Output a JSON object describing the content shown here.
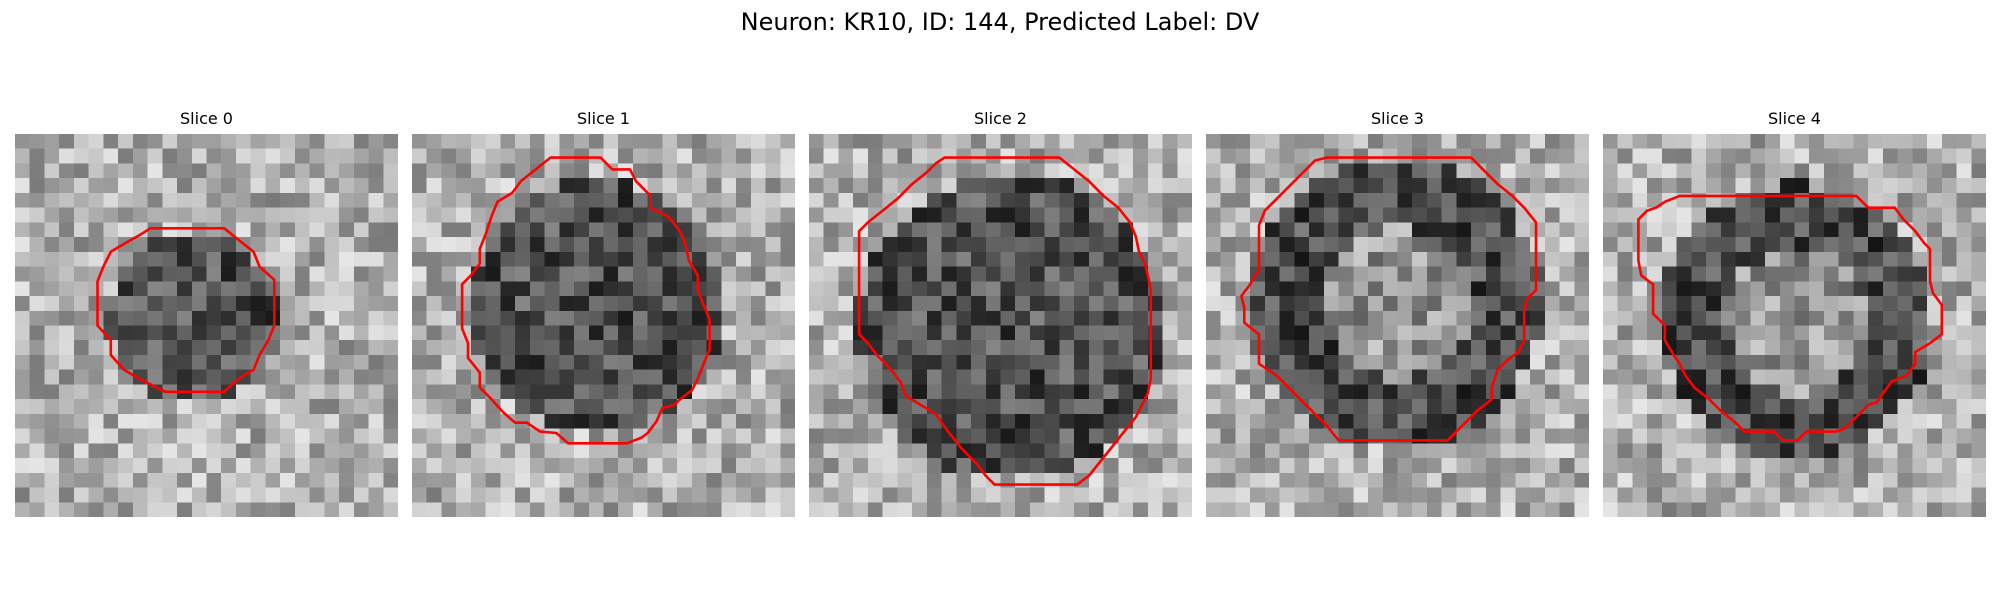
{
  "figure": {
    "title": "Neuron: KR10, ID: 144, Predicted Label: DV"
  },
  "panels": [
    {
      "title": "Slice 0",
      "contour": [
        [
          12.5,
          6.4
        ],
        [
          14.2,
          6.4
        ],
        [
          15.2,
          7.2
        ],
        [
          16.2,
          8.0
        ],
        [
          16.6,
          9.0
        ],
        [
          17.6,
          9.9
        ],
        [
          17.6,
          11.0
        ],
        [
          17.6,
          12.0
        ],
        [
          17.6,
          13.0
        ],
        [
          17.2,
          14.0
        ],
        [
          16.6,
          15.0
        ],
        [
          16.2,
          16.0
        ],
        [
          15.2,
          16.6
        ],
        [
          14.2,
          17.5
        ],
        [
          13.2,
          17.5
        ],
        [
          12.2,
          17.5
        ],
        [
          11.2,
          17.5
        ],
        [
          10.2,
          17.5
        ],
        [
          9.2,
          17.0
        ],
        [
          8.4,
          16.6
        ],
        [
          7.4,
          16.0
        ],
        [
          6.5,
          15.0
        ],
        [
          6.5,
          14.0
        ],
        [
          5.6,
          13.0
        ],
        [
          5.6,
          12.0
        ],
        [
          5.6,
          11.0
        ],
        [
          5.6,
          10.0
        ],
        [
          6.0,
          9.0
        ],
        [
          6.5,
          8.0
        ],
        [
          7.5,
          7.4
        ],
        [
          8.4,
          6.9
        ],
        [
          9.2,
          6.4
        ],
        [
          10.2,
          6.4
        ],
        [
          11.2,
          6.4
        ],
        [
          12.2,
          6.4
        ]
      ]
    },
    {
      "title": "Slice 1",
      "contour": [
        [
          9.8,
          1.6
        ],
        [
          10.8,
          1.6
        ],
        [
          11.8,
          1.6
        ],
        [
          12.8,
          1.6
        ],
        [
          13.6,
          2.4
        ],
        [
          14.8,
          2.4
        ],
        [
          15.2,
          3.2
        ],
        [
          16.2,
          4.2
        ],
        [
          16.2,
          5.0
        ],
        [
          17.4,
          5.6
        ],
        [
          18.2,
          6.6
        ],
        [
          18.6,
          7.6
        ],
        [
          18.8,
          8.6
        ],
        [
          19.4,
          9.6
        ],
        [
          19.4,
          10.6
        ],
        [
          19.8,
          11.6
        ],
        [
          20.2,
          12.6
        ],
        [
          20.2,
          13.6
        ],
        [
          20.2,
          14.6
        ],
        [
          19.8,
          15.6
        ],
        [
          19.4,
          16.6
        ],
        [
          19.0,
          17.4
        ],
        [
          18.2,
          18.0
        ],
        [
          17.8,
          18.4
        ],
        [
          17.0,
          18.6
        ],
        [
          16.6,
          19.5
        ],
        [
          16.0,
          20.3
        ],
        [
          15.6,
          20.6
        ],
        [
          14.6,
          21.0
        ],
        [
          13.6,
          21.0
        ],
        [
          12.6,
          21.0
        ],
        [
          11.6,
          21.0
        ],
        [
          10.6,
          21.0
        ],
        [
          9.8,
          20.3
        ],
        [
          8.7,
          20.2
        ],
        [
          7.8,
          19.6
        ],
        [
          7.0,
          19.6
        ],
        [
          6.2,
          18.9
        ],
        [
          5.4,
          18.0
        ],
        [
          4.6,
          17.2
        ],
        [
          4.6,
          16.2
        ],
        [
          3.8,
          15.2
        ],
        [
          3.8,
          14.2
        ],
        [
          3.4,
          13.2
        ],
        [
          3.4,
          12.2
        ],
        [
          3.4,
          11.2
        ],
        [
          3.4,
          10.2
        ],
        [
          4.0,
          9.6
        ],
        [
          4.6,
          8.8
        ],
        [
          4.6,
          7.8
        ],
        [
          5.0,
          6.8
        ],
        [
          5.4,
          5.6
        ],
        [
          5.8,
          4.6
        ],
        [
          6.8,
          4.0
        ],
        [
          7.4,
          3.2
        ],
        [
          8.4,
          2.4
        ],
        [
          9.4,
          1.6
        ]
      ]
    },
    {
      "title": "Slice 2",
      "contour": [
        [
          9.2,
          1.6
        ],
        [
          11.0,
          1.6
        ],
        [
          13.0,
          1.6
        ],
        [
          15.0,
          1.6
        ],
        [
          17.0,
          1.6
        ],
        [
          18.0,
          2.4
        ],
        [
          19.0,
          3.2
        ],
        [
          20.0,
          4.2
        ],
        [
          21.0,
          5.0
        ],
        [
          21.8,
          6.0
        ],
        [
          22.2,
          7.0
        ],
        [
          22.4,
          8.0
        ],
        [
          22.8,
          8.8
        ],
        [
          23.0,
          9.6
        ],
        [
          23.2,
          10.6
        ],
        [
          23.2,
          11.6
        ],
        [
          23.2,
          12.6
        ],
        [
          23.2,
          13.6
        ],
        [
          23.2,
          14.6
        ],
        [
          23.2,
          15.6
        ],
        [
          23.2,
          16.6
        ],
        [
          23.0,
          17.6
        ],
        [
          22.6,
          18.4
        ],
        [
          22.2,
          19.2
        ],
        [
          21.4,
          20.2
        ],
        [
          20.6,
          21.2
        ],
        [
          19.8,
          22.2
        ],
        [
          19.0,
          23.2
        ],
        [
          18.2,
          23.8
        ],
        [
          17.6,
          23.8
        ],
        [
          16.6,
          23.8
        ],
        [
          15.6,
          23.8
        ],
        [
          14.6,
          23.8
        ],
        [
          13.6,
          23.8
        ],
        [
          12.6,
          23.8
        ],
        [
          12.0,
          23.2
        ],
        [
          11.4,
          22.4
        ],
        [
          10.4,
          21.4
        ],
        [
          9.6,
          20.4
        ],
        [
          9.0,
          19.6
        ],
        [
          8.6,
          19.0
        ],
        [
          7.6,
          18.4
        ],
        [
          6.6,
          17.8
        ],
        [
          6.2,
          16.8
        ],
        [
          5.4,
          15.8
        ],
        [
          4.6,
          15.0
        ],
        [
          4.0,
          14.2
        ],
        [
          3.4,
          13.6
        ],
        [
          3.4,
          12.6
        ],
        [
          3.4,
          11.6
        ],
        [
          3.4,
          10.6
        ],
        [
          3.4,
          9.6
        ],
        [
          3.4,
          8.6
        ],
        [
          3.4,
          7.6
        ],
        [
          3.4,
          6.6
        ],
        [
          4.0,
          6.0
        ],
        [
          5.0,
          5.2
        ],
        [
          6.0,
          4.4
        ],
        [
          7.0,
          3.4
        ],
        [
          8.0,
          2.6
        ],
        [
          8.6,
          2.0
        ]
      ]
    },
    {
      "title": "Slice 3",
      "contour": [
        [
          8.2,
          1.6
        ],
        [
          10.0,
          1.6
        ],
        [
          12.0,
          1.6
        ],
        [
          14.0,
          1.6
        ],
        [
          16.0,
          1.6
        ],
        [
          18.0,
          1.6
        ],
        [
          18.8,
          2.4
        ],
        [
          19.8,
          3.4
        ],
        [
          20.8,
          4.2
        ],
        [
          21.6,
          5.0
        ],
        [
          22.4,
          6.0
        ],
        [
          22.4,
          7.0
        ],
        [
          22.4,
          8.0
        ],
        [
          22.4,
          9.0
        ],
        [
          22.4,
          10.0
        ],
        [
          22.4,
          10.6
        ],
        [
          21.8,
          11.2
        ],
        [
          21.6,
          12.0
        ],
        [
          21.6,
          13.0
        ],
        [
          21.6,
          14.0
        ],
        [
          21.2,
          14.8
        ],
        [
          20.4,
          15.4
        ],
        [
          19.8,
          16.0
        ],
        [
          19.4,
          17.2
        ],
        [
          19.4,
          18.0
        ],
        [
          18.4,
          18.8
        ],
        [
          17.4,
          19.8
        ],
        [
          16.4,
          20.8
        ],
        [
          15.0,
          20.8
        ],
        [
          14.0,
          20.8
        ],
        [
          13.0,
          20.8
        ],
        [
          12.0,
          20.8
        ],
        [
          11.0,
          20.8
        ],
        [
          10.0,
          20.8
        ],
        [
          9.0,
          20.8
        ],
        [
          8.2,
          19.8
        ],
        [
          7.4,
          19.0
        ],
        [
          6.4,
          18.0
        ],
        [
          5.6,
          17.2
        ],
        [
          4.8,
          16.4
        ],
        [
          3.6,
          15.6
        ],
        [
          3.6,
          14.6
        ],
        [
          3.6,
          13.6
        ],
        [
          2.6,
          12.8
        ],
        [
          2.6,
          11.8
        ],
        [
          2.4,
          11.0
        ],
        [
          3.0,
          10.2
        ],
        [
          3.6,
          9.2
        ],
        [
          3.6,
          8.2
        ],
        [
          3.6,
          7.2
        ],
        [
          3.6,
          6.2
        ],
        [
          4.0,
          5.2
        ],
        [
          4.8,
          4.4
        ],
        [
          5.6,
          3.6
        ],
        [
          6.6,
          2.6
        ],
        [
          7.4,
          1.8
        ]
      ]
    },
    {
      "title": "Slice 4",
      "contour": [
        [
          6.0,
          4.2
        ],
        [
          8.0,
          4.2
        ],
        [
          10.0,
          4.2
        ],
        [
          12.0,
          4.2
        ],
        [
          14.0,
          4.2
        ],
        [
          16.0,
          4.2
        ],
        [
          17.2,
          4.2
        ],
        [
          18.0,
          5.0
        ],
        [
          19.8,
          5.0
        ],
        [
          20.4,
          5.8
        ],
        [
          21.2,
          6.6
        ],
        [
          21.8,
          7.4
        ],
        [
          22.2,
          7.8
        ],
        [
          22.2,
          9.0
        ],
        [
          22.2,
          10.0
        ],
        [
          22.4,
          10.8
        ],
        [
          23.0,
          11.6
        ],
        [
          23.0,
          12.6
        ],
        [
          23.0,
          13.6
        ],
        [
          22.2,
          14.2
        ],
        [
          21.2,
          14.8
        ],
        [
          21.2,
          15.6
        ],
        [
          20.6,
          16.4
        ],
        [
          19.6,
          16.8
        ],
        [
          19.0,
          17.6
        ],
        [
          18.6,
          18.2
        ],
        [
          18.0,
          18.4
        ],
        [
          17.2,
          19.2
        ],
        [
          16.4,
          20.0
        ],
        [
          15.8,
          20.2
        ],
        [
          14.8,
          20.2
        ],
        [
          13.8,
          20.2
        ],
        [
          13.2,
          20.8
        ],
        [
          12.2,
          20.8
        ],
        [
          11.6,
          20.2
        ],
        [
          10.4,
          20.2
        ],
        [
          9.6,
          20.2
        ],
        [
          9.0,
          19.6
        ],
        [
          8.0,
          18.8
        ],
        [
          7.2,
          18.0
        ],
        [
          6.2,
          17.2
        ],
        [
          5.6,
          16.4
        ],
        [
          5.2,
          15.6
        ],
        [
          4.8,
          15.0
        ],
        [
          4.2,
          14.0
        ],
        [
          4.2,
          13.0
        ],
        [
          3.4,
          12.2
        ],
        [
          3.4,
          11.2
        ],
        [
          3.4,
          10.2
        ],
        [
          2.6,
          9.6
        ],
        [
          2.4,
          8.6
        ],
        [
          2.4,
          7.6
        ],
        [
          2.4,
          6.6
        ],
        [
          2.4,
          5.8
        ],
        [
          3.0,
          5.2
        ],
        [
          3.6,
          5.0
        ],
        [
          4.2,
          4.6
        ],
        [
          5.2,
          4.2
        ]
      ]
    }
  ]
}
